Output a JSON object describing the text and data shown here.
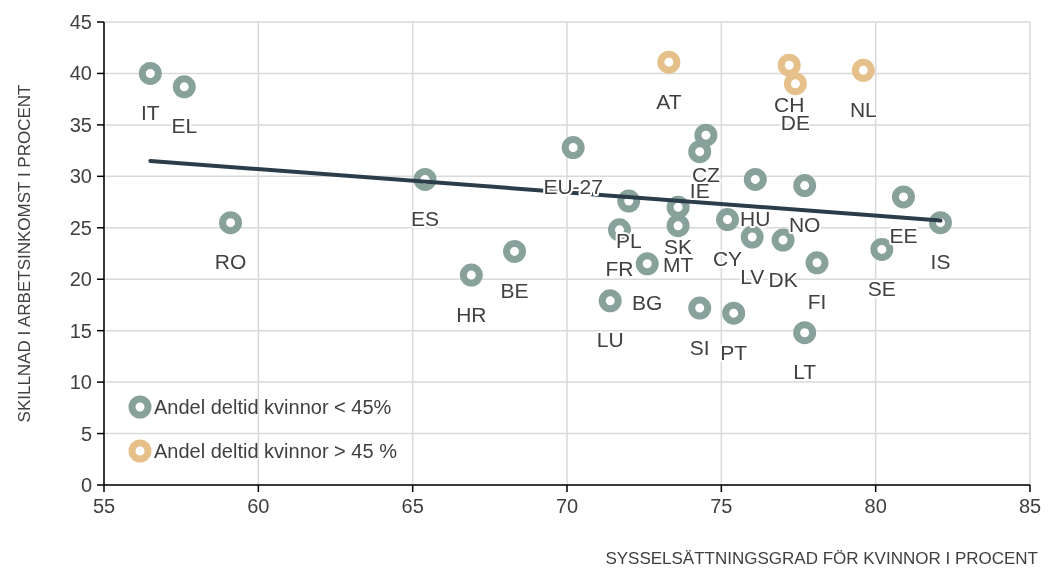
{
  "chart_data": {
    "type": "scatter",
    "xlabel": "SYSSELSÄTTNINGSGRAD FÖR KVINNOR I PROCENT",
    "ylabel": "SKILLNAD I ARBETSINKOMST I PROCENT",
    "xlim": [
      55,
      85
    ],
    "xticks": [
      55,
      60,
      65,
      70,
      75,
      80,
      85
    ],
    "ylim": [
      0,
      45
    ],
    "yticks": [
      0,
      5,
      10,
      15,
      20,
      25,
      30,
      35,
      40,
      45
    ],
    "grid": true,
    "legend": "bottom left",
    "marker": "circle",
    "series": [
      {
        "name": "Andel deltid kvinnor < 45%",
        "color": "#88a29b",
        "x": [
          56.5,
          57.6,
          59.1,
          65.4,
          66.9,
          68.3,
          70.2,
          71.4,
          72.0,
          71.7,
          72.6,
          73.6,
          73.6,
          74.3,
          74.5,
          74.3,
          75.4,
          75.2,
          76.1,
          76.0,
          77.0,
          77.7,
          78.1,
          77.7,
          80.9,
          80.2,
          82.1
        ],
        "values": [
          40.0,
          38.7,
          25.5,
          29.7,
          20.4,
          22.7,
          32.8,
          17.9,
          27.6,
          24.8,
          21.5,
          27.0,
          25.2,
          32.4,
          34.0,
          17.2,
          16.7,
          25.8,
          29.7,
          24.1,
          23.8,
          29.1,
          21.6,
          14.8,
          28.0,
          22.9,
          25.5
        ]
      },
      {
        "name": "Andel deltid kvinnor > 45 %",
        "color": "#e5c08a",
        "x": [
          73.3,
          77.2,
          77.4,
          79.6
        ],
        "values": [
          41.1,
          40.8,
          39.0,
          40.3
        ]
      },
      {
        "type": "line",
        "color": "#2b3d4a",
        "x": [
          56.5,
          82.1
        ],
        "values": [
          31.5,
          25.7
        ],
        "marker": "none"
      }
    ],
    "annotations": [
      {
        "text": "IT",
        "x": 56.5,
        "y": 40.0
      },
      {
        "text": "EL",
        "x": 57.6,
        "y": 38.7
      },
      {
        "text": "RO",
        "x": 59.1,
        "y": 25.5
      },
      {
        "text": "ES",
        "x": 65.4,
        "y": 29.7
      },
      {
        "text": "HR",
        "x": 66.9,
        "y": 20.4
      },
      {
        "text": "BE",
        "x": 68.3,
        "y": 22.7
      },
      {
        "text": "EU-27",
        "x": 70.2,
        "y": 32.8
      },
      {
        "text": "LU",
        "x": 71.4,
        "y": 17.9
      },
      {
        "text": "PL",
        "x": 72.0,
        "y": 27.6
      },
      {
        "text": "FR",
        "x": 71.7,
        "y": 24.8
      },
      {
        "text": "BG",
        "x": 72.6,
        "y": 21.5
      },
      {
        "text": "SK",
        "x": 73.6,
        "y": 27.0
      },
      {
        "text": "MT",
        "x": 73.6,
        "y": 25.2
      },
      {
        "text": "IE",
        "x": 74.3,
        "y": 32.4
      },
      {
        "text": "CZ",
        "x": 74.5,
        "y": 34.0
      },
      {
        "text": "SI",
        "x": 74.3,
        "y": 17.2
      },
      {
        "text": "PT",
        "x": 75.4,
        "y": 16.7
      },
      {
        "text": "CY",
        "x": 75.2,
        "y": 25.8
      },
      {
        "text": "HU",
        "x": 76.1,
        "y": 29.7
      },
      {
        "text": "LV",
        "x": 76.0,
        "y": 24.1
      },
      {
        "text": "DK",
        "x": 77.0,
        "y": 23.8
      },
      {
        "text": "NO",
        "x": 77.7,
        "y": 29.1
      },
      {
        "text": "FI",
        "x": 78.1,
        "y": 21.6
      },
      {
        "text": "LT",
        "x": 77.7,
        "y": 14.8
      },
      {
        "text": "EE",
        "x": 80.9,
        "y": 28.0
      },
      {
        "text": "SE",
        "x": 80.2,
        "y": 22.9
      },
      {
        "text": "IS",
        "x": 82.1,
        "y": 25.5
      },
      {
        "text": "AT",
        "x": 73.3,
        "y": 41.1
      },
      {
        "text": "CH",
        "x": 77.2,
        "y": 40.8
      },
      {
        "text": "DE",
        "x": 77.4,
        "y": 39.0
      },
      {
        "text": "NL",
        "x": 79.6,
        "y": 40.3
      }
    ]
  }
}
